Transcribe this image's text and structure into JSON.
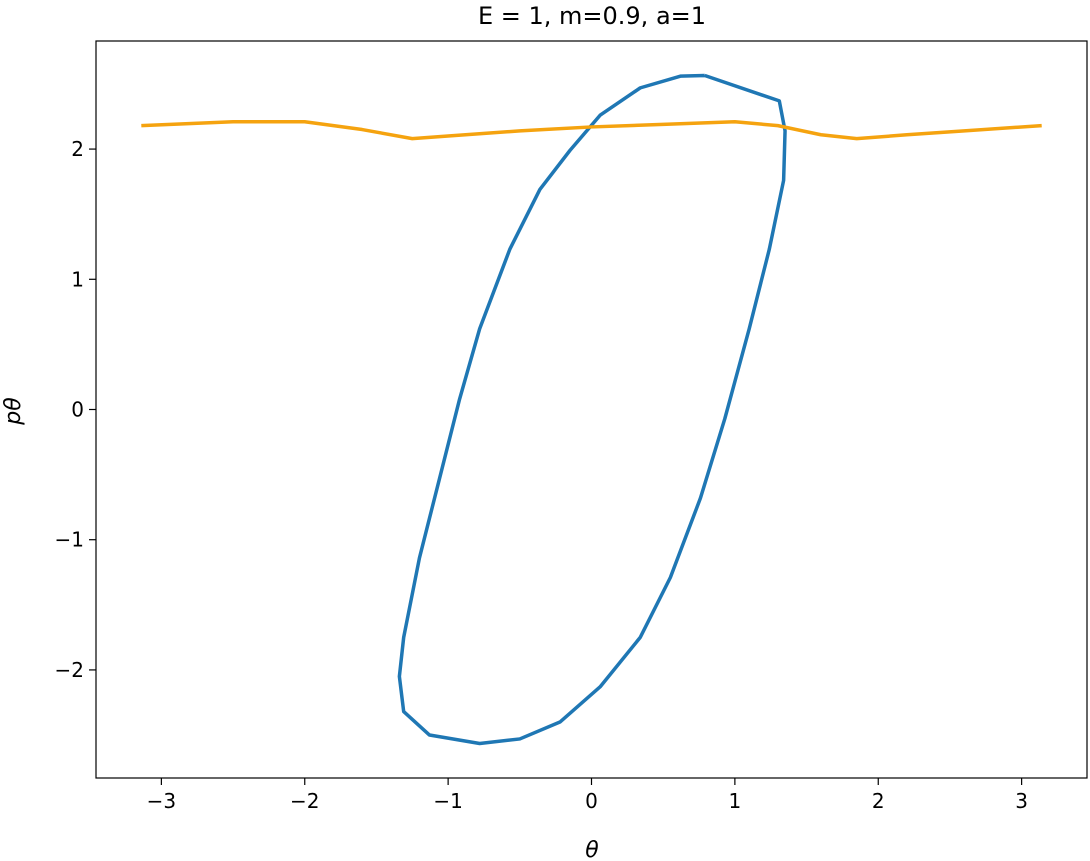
{
  "chart_data": {
    "type": "line",
    "title": "E = 1, m=0.9, a=1",
    "xlabel": "θ",
    "ylabel": "pθ",
    "xlim": [
      -3.456,
      3.456
    ],
    "ylim": [
      -2.83,
      2.83
    ],
    "xticks": [
      {
        "value": -3,
        "label": "−3"
      },
      {
        "value": -2,
        "label": "−2"
      },
      {
        "value": -1,
        "label": "−1"
      },
      0,
      1,
      2,
      3
    ],
    "yticks": [
      {
        "value": -2,
        "label": "−2"
      },
      {
        "value": -1,
        "label": "−1"
      },
      0,
      1,
      2
    ],
    "grid": false,
    "series": [
      {
        "color": "#1f77b4",
        "x": [
          0.79,
          1.31,
          1.35,
          1.34,
          1.24,
          1.1,
          0.93,
          0.76,
          0.55,
          0.34,
          0.06,
          -0.22,
          -0.5,
          -0.78,
          -1.13,
          -1.31,
          -1.34,
          -1.31,
          -1.2,
          -1.06,
          -0.92,
          -0.78,
          -0.57,
          -0.36,
          -0.15,
          0.06,
          0.34,
          0.62,
          0.79
        ],
        "values": [
          2.565,
          2.37,
          2.14,
          1.76,
          1.23,
          0.62,
          -0.07,
          -0.68,
          -1.29,
          -1.75,
          -2.13,
          -2.4,
          -2.53,
          -2.565,
          -2.5,
          -2.32,
          -2.05,
          -1.75,
          -1.14,
          -0.53,
          0.08,
          0.62,
          1.23,
          1.69,
          1.99,
          2.26,
          2.47,
          2.56,
          2.565
        ]
      },
      {
        "color": "#f5a30f",
        "x": [
          -3.14,
          -2.5,
          -2.0,
          -1.6,
          -1.25,
          -1.0,
          -0.5,
          0.0,
          0.5,
          1.0,
          1.3,
          1.6,
          1.85,
          2.2,
          2.6,
          3.14
        ],
        "values": [
          2.18,
          2.21,
          2.21,
          2.15,
          2.08,
          2.1,
          2.14,
          2.17,
          2.19,
          2.21,
          2.18,
          2.11,
          2.08,
          2.11,
          2.14,
          2.18
        ]
      }
    ]
  }
}
